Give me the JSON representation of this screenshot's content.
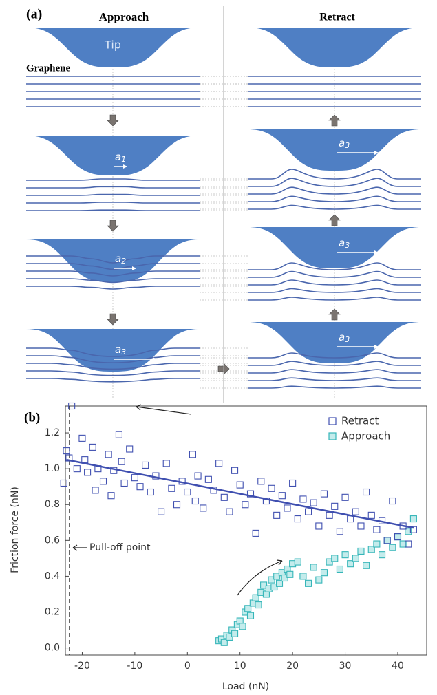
{
  "panel_a": {
    "label": "(a)",
    "left_title": "Approach",
    "right_title": "Retract",
    "tip_label": "Tip",
    "graphene_label": "Graphene",
    "a_labels": [
      {
        "base": "a",
        "sub": "1"
      },
      {
        "base": "a",
        "sub": "2"
      },
      {
        "base": "a",
        "sub": "3"
      },
      {
        "base": "a",
        "sub": "3"
      },
      {
        "base": "a",
        "sub": "3"
      },
      {
        "base": "a",
        "sub": "3"
      }
    ]
  },
  "chart_data": {
    "type": "scatter",
    "label": "(b)",
    "xlabel": "Load (nN)",
    "ylabel": "Friction force (nN)",
    "xlim": [
      -23.2,
      45.5
    ],
    "ylim": [
      -0.04,
      1.35
    ],
    "xticks": [
      -20,
      -10,
      0,
      10,
      20,
      30,
      40
    ],
    "yticks": [
      {
        "value": 0,
        "label": "0.0"
      },
      0.2,
      0.4,
      0.6,
      0.8,
      {
        "value": 1,
        "label": "1.0"
      },
      1.2
    ],
    "legend": "upper right",
    "series": [
      {
        "name": "Retract",
        "color": "#3f4fb0",
        "fill": "none",
        "x": [
          -23.5,
          -23,
          -22.5,
          -22,
          -21,
          -20,
          -19.5,
          -19,
          -18,
          -17.5,
          -17,
          -16,
          -15,
          -14.5,
          -14,
          -13,
          -12.5,
          -12,
          -11,
          -10,
          -9,
          -8,
          -7,
          -6,
          -5,
          -4,
          -3,
          -2,
          -1,
          0,
          1,
          1.5,
          2,
          3,
          4,
          5,
          6,
          7,
          8,
          9,
          10,
          11,
          12,
          13,
          14,
          15,
          16,
          17,
          18,
          19,
          20,
          21,
          22,
          23,
          24,
          25,
          26,
          27,
          28,
          29,
          30,
          31,
          32,
          33,
          34,
          35,
          36,
          37,
          38,
          39,
          40,
          41,
          42,
          43
        ],
        "values": [
          0.92,
          1.1,
          1.06,
          1.35,
          1.0,
          1.17,
          1.05,
          0.98,
          1.12,
          0.88,
          1.0,
          0.93,
          1.08,
          0.85,
          0.99,
          1.19,
          1.04,
          0.92,
          1.11,
          0.95,
          0.9,
          1.02,
          0.87,
          0.96,
          0.76,
          1.03,
          0.89,
          0.8,
          0.93,
          0.87,
          1.08,
          0.82,
          0.96,
          0.78,
          0.94,
          0.88,
          1.03,
          0.84,
          0.76,
          0.99,
          0.91,
          0.8,
          0.86,
          0.64,
          0.93,
          0.82,
          0.89,
          0.74,
          0.85,
          0.78,
          0.92,
          0.72,
          0.83,
          0.76,
          0.81,
          0.68,
          0.86,
          0.74,
          0.79,
          0.65,
          0.84,
          0.72,
          0.76,
          0.68,
          0.87,
          0.74,
          0.66,
          0.71,
          0.6,
          0.82,
          0.62,
          0.68,
          0.58,
          0.66
        ]
      },
      {
        "name": "Approach",
        "color": "#36b6b9",
        "fill": "#c4ecec",
        "x": [
          6,
          6.5,
          7,
          7.5,
          8,
          8.5,
          9,
          9.5,
          10,
          10.5,
          11,
          11.5,
          12,
          12.5,
          13,
          13.5,
          14,
          14.5,
          15,
          15.5,
          16,
          16.5,
          17,
          17.5,
          18,
          18.5,
          19,
          19.5,
          20,
          21,
          22,
          23,
          24,
          25,
          26,
          27,
          28,
          29,
          30,
          31,
          32,
          33,
          34,
          35,
          36,
          37,
          38,
          39,
          40,
          41,
          42,
          43
        ],
        "values": [
          0.04,
          0.05,
          0.03,
          0.07,
          0.06,
          0.1,
          0.08,
          0.13,
          0.15,
          0.12,
          0.2,
          0.22,
          0.18,
          0.25,
          0.28,
          0.24,
          0.31,
          0.35,
          0.3,
          0.33,
          0.38,
          0.34,
          0.4,
          0.36,
          0.42,
          0.39,
          0.44,
          0.41,
          0.47,
          0.48,
          0.4,
          0.36,
          0.45,
          0.38,
          0.42,
          0.48,
          0.5,
          0.44,
          0.52,
          0.47,
          0.5,
          0.54,
          0.46,
          0.55,
          0.58,
          0.52,
          0.6,
          0.56,
          0.62,
          0.58,
          0.65,
          0.72
        ]
      }
    ],
    "fit": {
      "color": "#3f4fb0",
      "x": [
        -23,
        43
      ],
      "y": [
        1.05,
        0.67
      ]
    },
    "pulloff_x": -22.4,
    "annotation": "Pull-off point"
  }
}
